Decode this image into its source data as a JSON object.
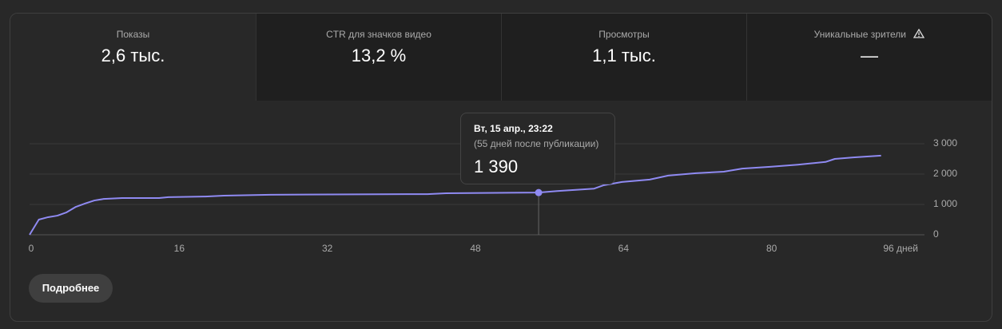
{
  "metrics": [
    {
      "label": "Показы",
      "value": "2,6 тыс."
    },
    {
      "label": "CTR для значков видео",
      "value": "13,2 %"
    },
    {
      "label": "Просмотры",
      "value": "1,1 тыс."
    },
    {
      "label": "Уникальные зрители",
      "value": "—"
    }
  ],
  "chart_data": {
    "type": "line",
    "color": "#8f8af2",
    "grid": true,
    "x": [
      0,
      1,
      2,
      3,
      4,
      5,
      6,
      7,
      8,
      10,
      14,
      15,
      19,
      21,
      26,
      43,
      45,
      55,
      57,
      61,
      62,
      64,
      67,
      69,
      72,
      75,
      77,
      80,
      83,
      86,
      87,
      89,
      92
    ],
    "values": [
      0,
      500,
      580,
      630,
      740,
      920,
      1030,
      1130,
      1180,
      1210,
      1210,
      1240,
      1260,
      1290,
      1320,
      1340,
      1370,
      1390,
      1440,
      1520,
      1630,
      1740,
      1820,
      1950,
      2030,
      2080,
      2180,
      2240,
      2310,
      2400,
      2500,
      2550,
      2610
    ],
    "xlim": [
      0,
      96
    ],
    "xticks": [
      0,
      16,
      32,
      48,
      64,
      80,
      {
        "value": 96,
        "label": "96 дней"
      }
    ],
    "ylim": [
      0,
      3000
    ],
    "yticks": [
      0,
      {
        "value": 1000,
        "label": "1 000"
      },
      {
        "value": 2000,
        "label": "2 000"
      },
      {
        "value": 3000,
        "label": "3 000"
      }
    ],
    "tooltip": {
      "title": "Вт, 15 апр., 23:22",
      "subtitle": "(55 дней после публикации)",
      "x": 55,
      "value": 1390,
      "value_label": "1 390"
    }
  },
  "button": {
    "label": "Подробнее"
  }
}
